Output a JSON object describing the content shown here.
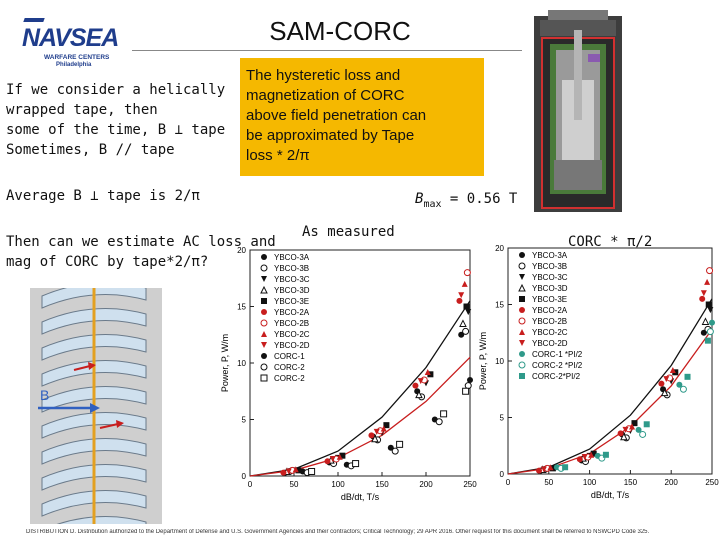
{
  "logo": {
    "main": "NAVSEA",
    "sub1": "WARFARE CENTERS",
    "sub2": "Philadelphia"
  },
  "title": "SAM-CORC",
  "left_text": [
    "If we consider a helically",
    "wrapped tape, then",
    "some of the time, B ⊥ tape",
    "Sometimes, B // tape"
  ],
  "yellow_box": [
    "The hysteretic loss and",
    "magnetization of CORC",
    "above field penetration can",
    "be approximated by Tape",
    "loss * 2/π"
  ],
  "average_line": "Average B ⊥ tape is 2/π",
  "bmax": {
    "symbol": "B",
    "sub": "max",
    "value": " = 0.56 T"
  },
  "estimate_text": [
    "Then can we estimate AC loss and",
    "mag of CORC by tape*2/π?"
  ],
  "as_measured": "As measured",
  "corc_label": "CORC * π/2",
  "helix_field_label": "B",
  "footer": "DISTRIBUTION D. Distribution authorized to the Department of Defense and U.S. Government Agencies and their contractors; Critical Technology; 29 APR 2016. Other request for this document shall be referred to NSWCPD Code 325.",
  "colors": {
    "navy": "#1f3d8c",
    "yellow": "#f5b800",
    "red": "#c81e1e",
    "teal": "#2f9a8a"
  },
  "chart_data": [
    {
      "type": "scatter",
      "xlabel": "dB/dt, T/s",
      "ylabel": "Power, P, W/m",
      "xlim": [
        0,
        250
      ],
      "ylim": [
        0,
        20
      ],
      "xticks": [
        0,
        50,
        100,
        150,
        200,
        250
      ],
      "yticks": [
        0,
        5,
        10,
        15,
        20
      ],
      "legend_position": "top-left",
      "series": [
        {
          "name": "YBCO-3A",
          "marker": "circle",
          "color": "#111111",
          "x": [
            40,
            90,
            140,
            190,
            240
          ],
          "y": [
            0.3,
            1.2,
            3.5,
            7.5,
            12.5
          ]
        },
        {
          "name": "YBCO-3B",
          "marker": "circle-open",
          "color": "#111111",
          "x": [
            45,
            95,
            145,
            195,
            245
          ],
          "y": [
            0.4,
            1.1,
            3.2,
            7.0,
            12.8
          ]
        },
        {
          "name": "YBCO-3C",
          "marker": "triangle-down",
          "color": "#111111",
          "x": [
            50,
            100,
            150,
            200,
            248
          ],
          "y": [
            0.5,
            1.6,
            3.8,
            8.2,
            14.5
          ]
        },
        {
          "name": "YBCO-3D",
          "marker": "triangle-open",
          "color": "#111111",
          "x": [
            42,
            92,
            142,
            192,
            242
          ],
          "y": [
            0.4,
            1.4,
            3.3,
            7.2,
            13.5
          ]
        },
        {
          "name": "YBCO-3E",
          "marker": "square",
          "color": "#111111",
          "x": [
            55,
            105,
            155,
            205,
            246
          ],
          "y": [
            0.5,
            1.8,
            4.5,
            9.0,
            15.0
          ]
        },
        {
          "name": "YBCO-2A",
          "marker": "circle",
          "color": "#c81e1e",
          "x": [
            38,
            88,
            138,
            188,
            238
          ],
          "y": [
            0.3,
            1.3,
            3.6,
            8.0,
            15.5
          ]
        },
        {
          "name": "YBCO-2B",
          "marker": "circle-open",
          "color": "#c81e1e",
          "x": [
            48,
            98,
            148,
            198,
            247
          ],
          "y": [
            0.5,
            1.5,
            4.0,
            8.5,
            18.0
          ]
        },
        {
          "name": "YBCO-2C",
          "marker": "triangle-up",
          "color": "#c81e1e",
          "x": [
            52,
            102,
            152,
            202,
            244
          ],
          "y": [
            0.6,
            1.7,
            4.2,
            9.2,
            17.0
          ]
        },
        {
          "name": "YBCO-2D",
          "marker": "triangle-down",
          "color": "#c81e1e",
          "x": [
            44,
            94,
            144,
            194,
            240
          ],
          "y": [
            0.4,
            1.5,
            3.9,
            8.4,
            16.0
          ]
        },
        {
          "name": "CORC-1",
          "marker": "circle",
          "color": "#111111",
          "x": [
            60,
            110,
            160,
            210,
            250
          ],
          "y": [
            0.4,
            1.0,
            2.5,
            5.0,
            8.5
          ]
        },
        {
          "name": "CORC-2",
          "marker": "circle-open",
          "color": "#111111",
          "x": [
            65,
            115,
            165,
            215,
            248
          ],
          "y": [
            0.3,
            0.9,
            2.2,
            4.8,
            8.0
          ]
        },
        {
          "name": "CORC-2",
          "marker": "square-open",
          "color": "#111111",
          "x": [
            70,
            120,
            170,
            220,
            245
          ],
          "y": [
            0.4,
            1.1,
            2.8,
            5.5,
            7.5
          ]
        }
      ],
      "fit_lines": [
        {
          "color": "#111111",
          "x": [
            0,
            50,
            100,
            150,
            200,
            250
          ],
          "y": [
            0,
            0.6,
            2.2,
            5.2,
            9.6,
            15.5
          ]
        },
        {
          "color": "#c81e1e",
          "x": [
            0,
            50,
            100,
            150,
            200,
            250
          ],
          "y": [
            0,
            0.5,
            1.6,
            3.6,
            6.6,
            10.5
          ]
        }
      ]
    },
    {
      "type": "scatter",
      "xlabel": "dB/dt, T/s",
      "ylabel": "Power, P, W/m",
      "xlim": [
        0,
        250
      ],
      "ylim": [
        0,
        20
      ],
      "xticks": [
        0,
        50,
        100,
        150,
        200,
        250
      ],
      "yticks": [
        0,
        5,
        10,
        15,
        20
      ],
      "legend_position": "top-left",
      "series": [
        {
          "name": "YBCO-3A",
          "marker": "circle",
          "color": "#111111",
          "x": [
            40,
            90,
            140,
            190,
            240
          ],
          "y": [
            0.3,
            1.2,
            3.5,
            7.5,
            12.5
          ]
        },
        {
          "name": "YBCO-3B",
          "marker": "circle-open",
          "color": "#111111",
          "x": [
            45,
            95,
            145,
            195,
            245
          ],
          "y": [
            0.4,
            1.1,
            3.2,
            7.0,
            12.8
          ]
        },
        {
          "name": "YBCO-3C",
          "marker": "triangle-down",
          "color": "#111111",
          "x": [
            50,
            100,
            150,
            200,
            248
          ],
          "y": [
            0.5,
            1.6,
            3.8,
            8.2,
            14.5
          ]
        },
        {
          "name": "YBCO-3D",
          "marker": "triangle-open",
          "color": "#111111",
          "x": [
            42,
            92,
            142,
            192,
            242
          ],
          "y": [
            0.4,
            1.4,
            3.3,
            7.2,
            13.5
          ]
        },
        {
          "name": "YBCO-3E",
          "marker": "square",
          "color": "#111111",
          "x": [
            55,
            105,
            155,
            205,
            246
          ],
          "y": [
            0.5,
            1.8,
            4.5,
            9.0,
            15.0
          ]
        },
        {
          "name": "YBCO-2A",
          "marker": "circle",
          "color": "#c81e1e",
          "x": [
            38,
            88,
            138,
            188,
            238
          ],
          "y": [
            0.3,
            1.3,
            3.6,
            8.0,
            15.5
          ]
        },
        {
          "name": "YBCO-2B",
          "marker": "circle-open",
          "color": "#c81e1e",
          "x": [
            48,
            98,
            148,
            198,
            247
          ],
          "y": [
            0.5,
            1.5,
            4.0,
            8.5,
            18.0
          ]
        },
        {
          "name": "YBCO-2C",
          "marker": "triangle-up",
          "color": "#c81e1e",
          "x": [
            52,
            102,
            152,
            202,
            244
          ],
          "y": [
            0.6,
            1.7,
            4.2,
            9.2,
            17.0
          ]
        },
        {
          "name": "YBCO-2D",
          "marker": "triangle-down",
          "color": "#c81e1e",
          "x": [
            44,
            94,
            144,
            194,
            240
          ],
          "y": [
            0.4,
            1.5,
            3.9,
            8.4,
            16.0
          ]
        },
        {
          "name": "CORC-1 *PI/2",
          "marker": "circle",
          "color": "#2f9a8a",
          "x": [
            60,
            110,
            160,
            210,
            250
          ],
          "y": [
            0.6,
            1.6,
            3.9,
            7.9,
            13.4
          ]
        },
        {
          "name": "CORC-2 *PI/2",
          "marker": "circle-open",
          "color": "#2f9a8a",
          "x": [
            65,
            115,
            165,
            215,
            248
          ],
          "y": [
            0.5,
            1.4,
            3.5,
            7.5,
            12.6
          ]
        },
        {
          "name": "CORC-2*PI/2",
          "marker": "square",
          "color": "#2f9a8a",
          "x": [
            70,
            120,
            170,
            220,
            245
          ],
          "y": [
            0.6,
            1.7,
            4.4,
            8.6,
            11.8
          ]
        }
      ],
      "fit_lines": [
        {
          "color": "#111111",
          "x": [
            0,
            50,
            100,
            150,
            200,
            250
          ],
          "y": [
            0,
            0.6,
            2.2,
            5.2,
            9.6,
            15.5
          ]
        },
        {
          "color": "#c81e1e",
          "x": [
            0,
            50,
            100,
            150,
            200,
            250
          ],
          "y": [
            0,
            0.5,
            1.8,
            4.2,
            7.8,
            12.8
          ]
        }
      ]
    }
  ]
}
